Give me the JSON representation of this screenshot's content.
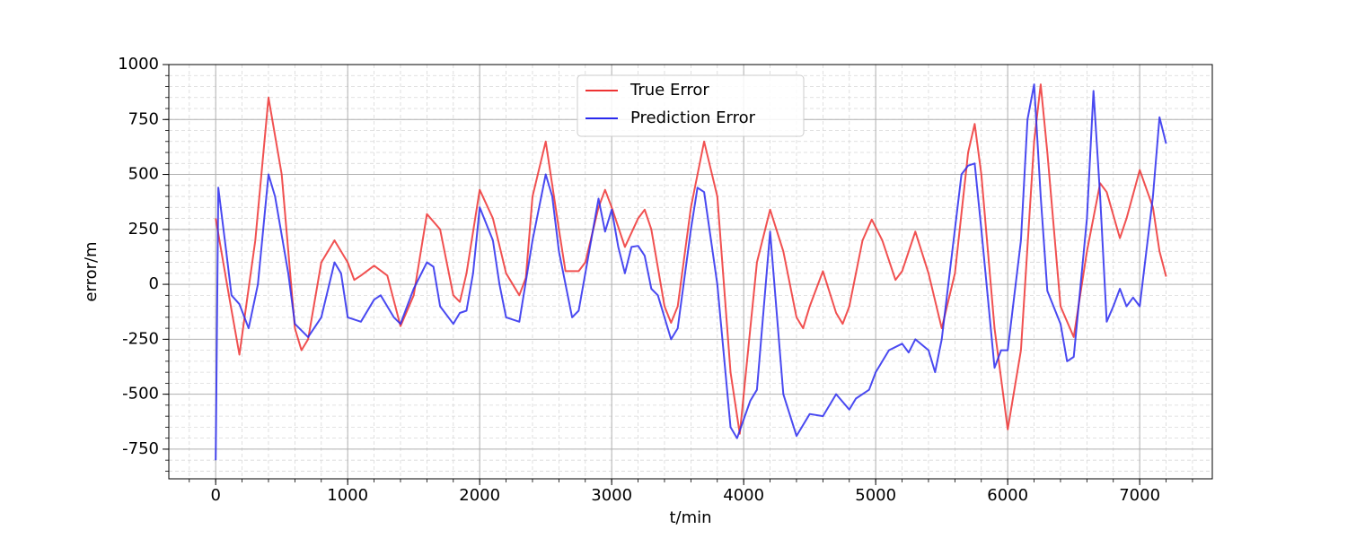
{
  "chart_data": {
    "type": "line",
    "xlabel": "t/min",
    "ylabel": "error/m",
    "xlim": [
      -355,
      7550
    ],
    "ylim": [
      -885,
      1000
    ],
    "xticks": [
      0,
      1000,
      2000,
      3000,
      4000,
      5000,
      6000,
      7000
    ],
    "yticks": [
      -750,
      -500,
      -250,
      0,
      250,
      500,
      750,
      1000
    ],
    "grid": true,
    "minor_grid": true,
    "legend": "upper center",
    "series": [
      {
        "name": "True Error",
        "color": "#ee3333",
        "x": [
          0,
          100,
          180,
          300,
          400,
          500,
          600,
          650,
          700,
          800,
          900,
          1000,
          1050,
          1100,
          1200,
          1300,
          1400,
          1500,
          1600,
          1700,
          1800,
          1850,
          1900,
          2000,
          2100,
          2200,
          2300,
          2350,
          2400,
          2500,
          2600,
          2650,
          2750,
          2800,
          2900,
          2950,
          3000,
          3100,
          3200,
          3250,
          3300,
          3400,
          3450,
          3500,
          3600,
          3700,
          3800,
          3900,
          3970,
          4100,
          4200,
          4300,
          4400,
          4450,
          4500,
          4600,
          4700,
          4750,
          4800,
          4900,
          4970,
          5050,
          5150,
          5200,
          5300,
          5400,
          5500,
          5600,
          5700,
          5750,
          5800,
          5900,
          6000,
          6100,
          6200,
          6250,
          6300,
          6400,
          6500,
          6600,
          6700,
          6750,
          6850,
          6900,
          7000,
          7100,
          7150,
          7200
        ],
        "values": [
          300,
          -50,
          -320,
          200,
          850,
          500,
          -200,
          -300,
          -250,
          100,
          200,
          100,
          20,
          40,
          85,
          40,
          -190,
          -50,
          320,
          250,
          -50,
          -80,
          50,
          430,
          300,
          50,
          -50,
          30,
          400,
          650,
          250,
          60,
          60,
          100,
          350,
          430,
          350,
          170,
          300,
          340,
          250,
          -100,
          -175,
          -100,
          350,
          650,
          400,
          -400,
          -680,
          100,
          340,
          150,
          -150,
          -200,
          -100,
          60,
          -130,
          -180,
          -100,
          200,
          295,
          200,
          20,
          60,
          240,
          50,
          -200,
          50,
          600,
          730,
          500,
          -200,
          -660,
          -300,
          650,
          910,
          600,
          -100,
          -240,
          150,
          460,
          420,
          210,
          300,
          520,
          350,
          150,
          35
        ]
      },
      {
        "name": "Prediction Error",
        "color": "#2a2aee",
        "x": [
          0,
          20,
          80,
          120,
          180,
          250,
          320,
          400,
          450,
          550,
          600,
          700,
          800,
          900,
          950,
          1000,
          1100,
          1200,
          1250,
          1350,
          1400,
          1500,
          1600,
          1650,
          1700,
          1800,
          1850,
          1900,
          1950,
          2000,
          2100,
          2150,
          2200,
          2300,
          2400,
          2500,
          2550,
          2600,
          2700,
          2750,
          2800,
          2900,
          2950,
          3000,
          3050,
          3100,
          3150,
          3200,
          3250,
          3300,
          3350,
          3450,
          3500,
          3600,
          3650,
          3700,
          3800,
          3900,
          3950,
          4050,
          4100,
          4200,
          4300,
          4400,
          4500,
          4600,
          4700,
          4800,
          4850,
          4950,
          5000,
          5100,
          5200,
          5250,
          5300,
          5400,
          5450,
          5500,
          5650,
          5700,
          5750,
          5800,
          5900,
          5950,
          6000,
          6100,
          6150,
          6200,
          6250,
          6300,
          6400,
          6450,
          6500,
          6600,
          6650,
          6700,
          6750,
          6800,
          6850,
          6900,
          6950,
          7000,
          7100,
          7150,
          7200
        ],
        "values": [
          -800,
          440,
          150,
          -50,
          -90,
          -200,
          0,
          500,
          400,
          50,
          -180,
          -240,
          -150,
          100,
          50,
          -150,
          -170,
          -70,
          -50,
          -150,
          -180,
          -20,
          100,
          80,
          -100,
          -180,
          -130,
          -120,
          50,
          350,
          200,
          0,
          -150,
          -170,
          200,
          500,
          400,
          150,
          -150,
          -120,
          50,
          390,
          240,
          340,
          170,
          50,
          170,
          175,
          130,
          -20,
          -50,
          -250,
          -200,
          250,
          440,
          420,
          0,
          -650,
          -700,
          -530,
          -480,
          240,
          -500,
          -690,
          -590,
          -600,
          -500,
          -570,
          -520,
          -480,
          -400,
          -300,
          -270,
          -310,
          -250,
          -300,
          -400,
          -250,
          500,
          540,
          550,
          250,
          -380,
          -300,
          -300,
          200,
          750,
          910,
          400,
          -30,
          -180,
          -350,
          -330,
          300,
          880,
          400,
          -170,
          -100,
          -20,
          -100,
          -60,
          -100,
          400,
          760,
          640
        ]
      }
    ]
  }
}
